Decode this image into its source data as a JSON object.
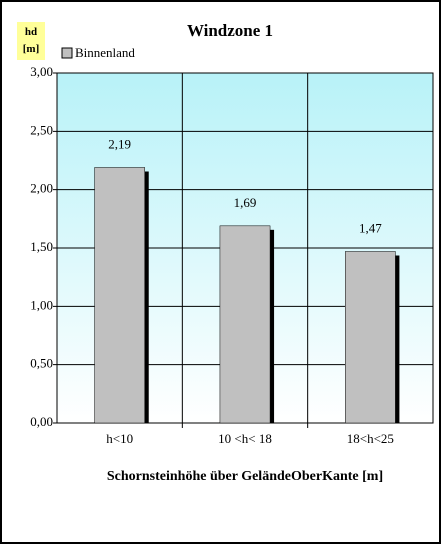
{
  "chart_data": {
    "type": "bar",
    "title": "Windzone 1",
    "y_label": "hd [m]",
    "x_label": "Schornsteinhöhe über GeländeOberKante [m]",
    "categories": [
      "h<10",
      "10 <h< 18",
      "18<h<25"
    ],
    "series": [
      {
        "name": "Binnenland",
        "color": "#c0c0c0",
        "values": [
          2.19,
          1.69,
          1.47
        ],
        "value_labels": [
          "2,19",
          "1,69",
          "1,47"
        ]
      }
    ],
    "ylim": [
      0,
      3
    ],
    "yticks": [
      {
        "value": 0,
        "label": "0,00"
      },
      {
        "value": 0.5,
        "label": "0,50"
      },
      {
        "value": 1,
        "label": "1,00"
      },
      {
        "value": 1.5,
        "label": "1,50"
      },
      {
        "value": 2,
        "label": "2,00"
      },
      {
        "value": 2.5,
        "label": "2,50"
      },
      {
        "value": 3,
        "label": "3,00"
      }
    ],
    "grid": true,
    "legend": "top-left"
  }
}
